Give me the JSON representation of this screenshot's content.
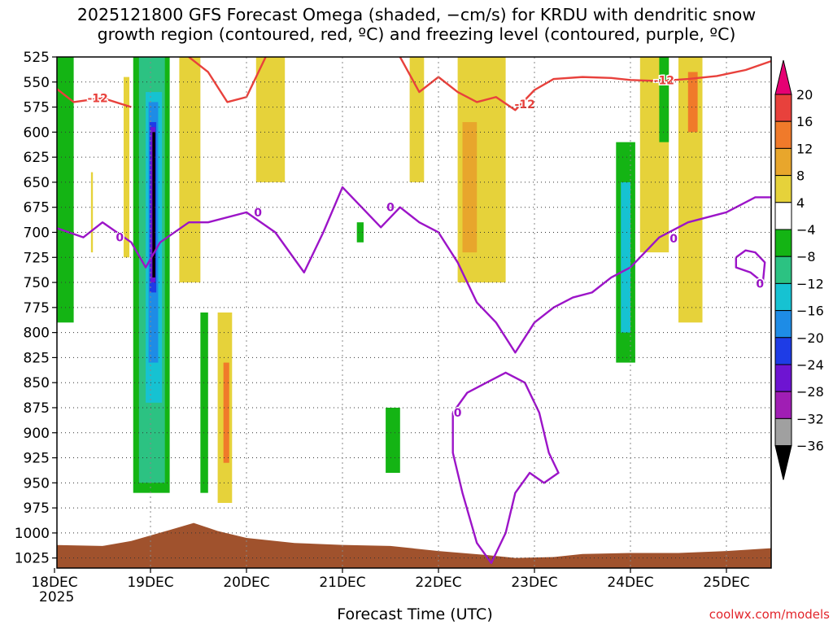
{
  "title_line1": "2025121800 GFS Forecast Omega (shaded, −cm/s) for KRDU with dendritic snow",
  "title_line2": "growth region (contoured, red, ºC) and freezing level (contoured, purple, ºC)",
  "xlabel": "Forecast Time (UTC)",
  "credit": "coolwx.com/models",
  "chart_data": {
    "type": "heatmap",
    "title": "2025121800 GFS Forecast Omega (shaded, −cm/s) for KRDU with dendritic snow growth region (contoured, red, ºC) and freezing level (contoured, purple, ºC)",
    "xlabel": "Forecast Time (UTC)",
    "ylabel": "",
    "y_scale": "pressure (reversed)",
    "ylim": [
      1035,
      525
    ],
    "xlim": [
      "2025-12-18 00Z",
      "2025-12-25 12Z"
    ],
    "grid": true,
    "x_ticks": [
      {
        "t": 0,
        "label": "18DEC"
      },
      {
        "t": 1,
        "label": "19DEC"
      },
      {
        "t": 2,
        "label": "20DEC"
      },
      {
        "t": 3,
        "label": "21DEC"
      },
      {
        "t": 4,
        "label": "22DEC"
      },
      {
        "t": 5,
        "label": "23DEC"
      },
      {
        "t": 6,
        "label": "24DEC"
      },
      {
        "t": 7,
        "label": "25DEC"
      }
    ],
    "x_year_label": "2025",
    "y_ticks": [
      525,
      550,
      575,
      600,
      625,
      650,
      675,
      700,
      725,
      750,
      775,
      800,
      825,
      850,
      875,
      900,
      925,
      950,
      975,
      1000,
      1025
    ],
    "colorbar": {
      "levels": [
        20,
        16,
        12,
        8,
        4,
        -4,
        -8,
        -12,
        -16,
        -20,
        -24,
        -28,
        -32,
        -36
      ],
      "bins": [
        {
          "color": "#e60073"
        },
        {
          "color": "#e8413c"
        },
        {
          "color": "#f07a2a"
        },
        {
          "color": "#e8a62c"
        },
        {
          "color": "#e6d23a"
        },
        {
          "color": "#ffffff"
        },
        {
          "color": "#14b414"
        },
        {
          "color": "#2cc282"
        },
        {
          "color": "#16c2d2"
        },
        {
          "color": "#1e8ce6"
        },
        {
          "color": "#1e3ce6"
        },
        {
          "color": "#6e14d2"
        },
        {
          "color": "#a01eb4"
        },
        {
          "color": "#a0a0a0"
        },
        {
          "color": "#000000"
        }
      ]
    },
    "omega_patches": [
      {
        "t0": 0.03,
        "t1": 0.2,
        "p0": 525,
        "p1": 790,
        "color": "#14b414"
      },
      {
        "t0": 0.38,
        "t1": 0.4,
        "p0": 640,
        "p1": 720,
        "color": "#e6d23a"
      },
      {
        "t0": 0.72,
        "t1": 0.78,
        "p0": 545,
        "p1": 725,
        "color": "#e6d23a"
      },
      {
        "t0": 0.82,
        "t1": 1.2,
        "p0": 525,
        "p1": 960,
        "color": "#14b414"
      },
      {
        "t0": 0.88,
        "t1": 1.15,
        "p0": 525,
        "p1": 950,
        "color": "#2cc282"
      },
      {
        "t0": 0.95,
        "t1": 1.12,
        "p0": 560,
        "p1": 870,
        "color": "#16c2d2"
      },
      {
        "t0": 0.98,
        "t1": 1.08,
        "p0": 570,
        "p1": 830,
        "color": "#1e8ce6"
      },
      {
        "t0": 0.99,
        "t1": 1.06,
        "p0": 590,
        "p1": 760,
        "color": "#1e3ce6"
      },
      {
        "t0": 1.0,
        "t1": 1.05,
        "p0": 595,
        "p1": 750,
        "color": "#6e14d2"
      },
      {
        "t0": 1.02,
        "t1": 1.05,
        "p0": 600,
        "p1": 745,
        "color": "#000000"
      },
      {
        "t0": 1.3,
        "t1": 1.52,
        "p0": 525,
        "p1": 750,
        "color": "#e6d23a"
      },
      {
        "t0": 1.52,
        "t1": 1.6,
        "p0": 780,
        "p1": 960,
        "color": "#14b414"
      },
      {
        "t0": 1.7,
        "t1": 1.85,
        "p0": 780,
        "p1": 970,
        "color": "#e6d23a"
      },
      {
        "t0": 1.76,
        "t1": 1.82,
        "p0": 830,
        "p1": 930,
        "color": "#f07a2a"
      },
      {
        "t0": 2.1,
        "t1": 2.4,
        "p0": 525,
        "p1": 650,
        "color": "#e6d23a"
      },
      {
        "t0": 3.15,
        "t1": 3.22,
        "p0": 690,
        "p1": 710,
        "color": "#14b414"
      },
      {
        "t0": 3.45,
        "t1": 3.6,
        "p0": 875,
        "p1": 940,
        "color": "#14b414"
      },
      {
        "t0": 3.7,
        "t1": 3.85,
        "p0": 525,
        "p1": 650,
        "color": "#e6d23a"
      },
      {
        "t0": 4.2,
        "t1": 4.7,
        "p0": 525,
        "p1": 750,
        "color": "#e6d23a"
      },
      {
        "t0": 4.25,
        "t1": 4.4,
        "p0": 590,
        "p1": 720,
        "color": "#e8a62c"
      },
      {
        "t0": 5.85,
        "t1": 6.05,
        "p0": 610,
        "p1": 830,
        "color": "#14b414"
      },
      {
        "t0": 5.9,
        "t1": 6.0,
        "p0": 650,
        "p1": 800,
        "color": "#16c2d2"
      },
      {
        "t0": 6.1,
        "t1": 6.4,
        "p0": 525,
        "p1": 720,
        "color": "#e6d23a"
      },
      {
        "t0": 6.3,
        "t1": 6.4,
        "p0": 525,
        "p1": 610,
        "color": "#14b414"
      },
      {
        "t0": 6.5,
        "t1": 6.75,
        "p0": 525,
        "p1": 790,
        "color": "#e6d23a"
      },
      {
        "t0": 6.6,
        "t1": 6.7,
        "p0": 540,
        "p1": 600,
        "color": "#f07a2a"
      }
    ],
    "dgz_contour": {
      "label": "-12",
      "color": "#e8413c",
      "segments": [
        [
          [
            0.0,
            555
          ],
          [
            0.2,
            570
          ],
          [
            0.5,
            566
          ],
          [
            0.8,
            575
          ]
        ],
        [
          [
            1.4,
            525
          ],
          [
            1.6,
            540
          ],
          [
            1.8,
            570
          ],
          [
            2.0,
            565
          ],
          [
            2.2,
            525
          ]
        ],
        [
          [
            3.6,
            525
          ],
          [
            3.8,
            560
          ],
          [
            4.0,
            545
          ],
          [
            4.2,
            560
          ],
          [
            4.4,
            570
          ],
          [
            4.6,
            565
          ],
          [
            4.8,
            578
          ],
          [
            5.0,
            558
          ],
          [
            5.2,
            547
          ],
          [
            5.5,
            545
          ],
          [
            5.8,
            546
          ],
          [
            6.0,
            548
          ],
          [
            6.3,
            549
          ],
          [
            6.6,
            547
          ],
          [
            6.9,
            544
          ],
          [
            7.2,
            538
          ],
          [
            7.5,
            528
          ]
        ]
      ]
    },
    "freezing_contour": {
      "label": "0",
      "color": "#9c14c8",
      "segments": [
        [
          [
            0.0,
            695
          ],
          [
            0.3,
            705
          ],
          [
            0.5,
            690
          ],
          [
            0.8,
            710
          ],
          [
            0.95,
            735
          ],
          [
            1.1,
            710
          ],
          [
            1.4,
            690
          ],
          [
            1.6,
            690
          ],
          [
            2.0,
            680
          ],
          [
            2.3,
            700
          ],
          [
            2.6,
            740
          ],
          [
            2.8,
            700
          ],
          [
            3.0,
            655
          ],
          [
            3.2,
            675
          ],
          [
            3.4,
            695
          ],
          [
            3.6,
            675
          ],
          [
            3.8,
            690
          ],
          [
            4.0,
            700
          ],
          [
            4.2,
            730
          ],
          [
            4.4,
            770
          ],
          [
            4.6,
            790
          ],
          [
            4.8,
            820
          ],
          [
            5.0,
            790
          ],
          [
            5.2,
            775
          ],
          [
            5.4,
            765
          ],
          [
            5.6,
            760
          ],
          [
            5.8,
            745
          ],
          [
            6.0,
            735
          ],
          [
            6.3,
            705
          ],
          [
            6.6,
            690
          ],
          [
            7.0,
            680
          ],
          [
            7.3,
            665
          ],
          [
            7.5,
            665
          ]
        ],
        [
          [
            4.15,
            880
          ],
          [
            4.3,
            860
          ],
          [
            4.5,
            850
          ],
          [
            4.7,
            840
          ],
          [
            4.9,
            850
          ],
          [
            5.05,
            880
          ],
          [
            5.15,
            920
          ],
          [
            5.25,
            940
          ],
          [
            5.1,
            950
          ],
          [
            4.95,
            940
          ],
          [
            4.8,
            960
          ],
          [
            4.7,
            1000
          ],
          [
            4.55,
            1030
          ],
          [
            4.4,
            1010
          ],
          [
            4.25,
            960
          ],
          [
            4.15,
            920
          ],
          [
            4.15,
            880
          ]
        ],
        [
          [
            7.1,
            725
          ],
          [
            7.2,
            718
          ],
          [
            7.3,
            720
          ],
          [
            7.4,
            730
          ],
          [
            7.38,
            750
          ],
          [
            7.25,
            740
          ],
          [
            7.1,
            735
          ],
          [
            7.1,
            725
          ]
        ]
      ]
    },
    "terrain_surface": {
      "color": "#a0522d",
      "points": [
        [
          0.0,
          1012
        ],
        [
          0.5,
          1013
        ],
        [
          0.8,
          1008
        ],
        [
          1.2,
          997
        ],
        [
          1.45,
          990
        ],
        [
          1.7,
          998
        ],
        [
          2.0,
          1005
        ],
        [
          2.5,
          1010
        ],
        [
          3.0,
          1012
        ],
        [
          3.5,
          1013
        ],
        [
          4.0,
          1018
        ],
        [
          4.5,
          1022
        ],
        [
          4.8,
          1025
        ],
        [
          5.2,
          1024
        ],
        [
          5.5,
          1021
        ],
        [
          6.0,
          1020
        ],
        [
          6.5,
          1020
        ],
        [
          7.0,
          1018
        ],
        [
          7.5,
          1015
        ]
      ]
    }
  }
}
